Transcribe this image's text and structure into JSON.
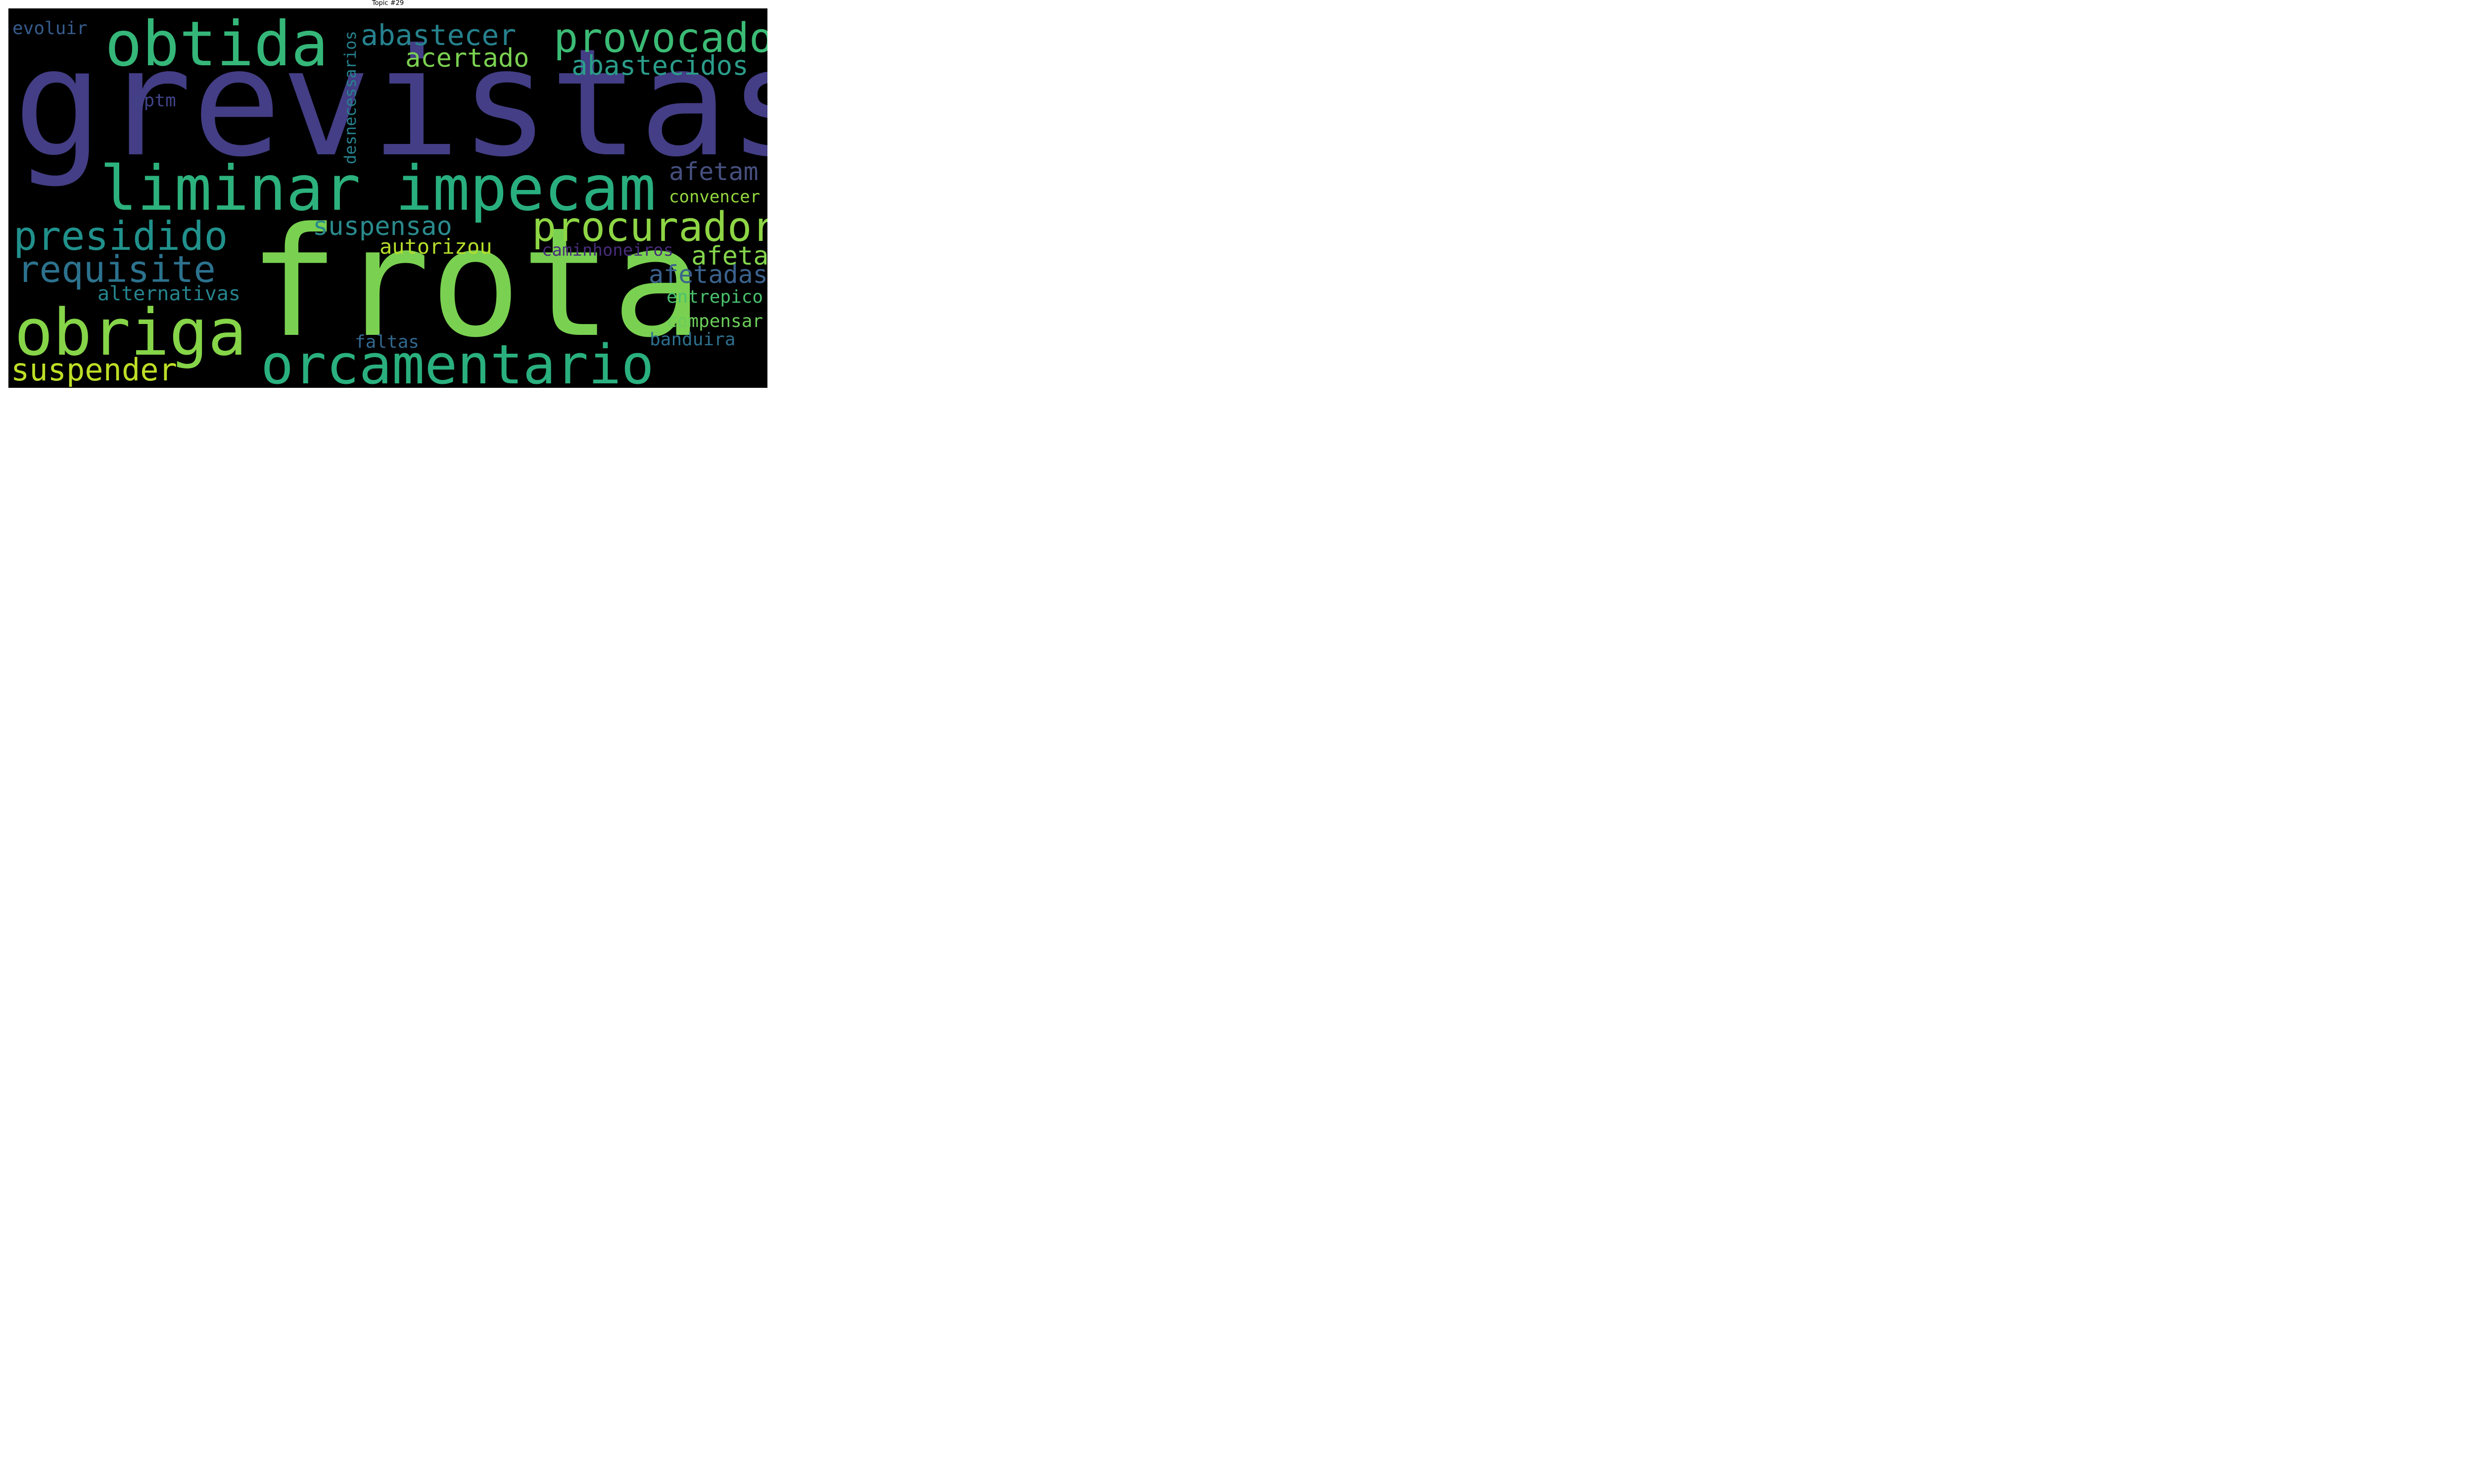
{
  "chart_data": {
    "type": "wordcloud",
    "title": "Topic #29",
    "background": "#000000",
    "words": [
      {
        "text": "grevistas",
        "color": "#433e85"
      },
      {
        "text": "frota",
        "color": "#7ad151"
      },
      {
        "text": "obtida",
        "color": "#35b779"
      },
      {
        "text": "liminar",
        "color": "#2db27d"
      },
      {
        "text": "impecam",
        "color": "#29af7f"
      },
      {
        "text": "obriga",
        "color": "#86d549"
      },
      {
        "text": "orcamentario",
        "color": "#2ab07f"
      },
      {
        "text": "provocado",
        "color": "#3bbb75"
      },
      {
        "text": "procurador",
        "color": "#8ed645"
      },
      {
        "text": "presidido",
        "color": "#21918c"
      },
      {
        "text": "requisite",
        "color": "#2c728e"
      },
      {
        "text": "suspender",
        "color": "#bddf26"
      },
      {
        "text": "abastecer",
        "color": "#26828e"
      },
      {
        "text": "acertado",
        "color": "#7ad151"
      },
      {
        "text": "abastecidos",
        "color": "#2a9d8a"
      },
      {
        "text": "suspensao",
        "color": "#2a8a8c"
      },
      {
        "text": "afetam",
        "color": "#46507f"
      },
      {
        "text": "convencer",
        "color": "#95d840"
      },
      {
        "text": "afeta",
        "color": "#84d44b"
      },
      {
        "text": "afetadas",
        "color": "#3b628d"
      },
      {
        "text": "autorizou",
        "color": "#b5de2b"
      },
      {
        "text": "caminhoneiros",
        "color": "#472c7a"
      },
      {
        "text": "alternativas",
        "color": "#25858e"
      },
      {
        "text": "entrepico",
        "color": "#4ac16d"
      },
      {
        "text": "compensar",
        "color": "#6ccd5a"
      },
      {
        "text": "faltas",
        "color": "#31688e"
      },
      {
        "text": "banduira",
        "color": "#2d708e"
      },
      {
        "text": "evoluir",
        "color": "#365c8d"
      },
      {
        "text": "cptm",
        "color": "#404387"
      },
      {
        "text": "desnecessarios",
        "color": "#26828e"
      }
    ]
  }
}
